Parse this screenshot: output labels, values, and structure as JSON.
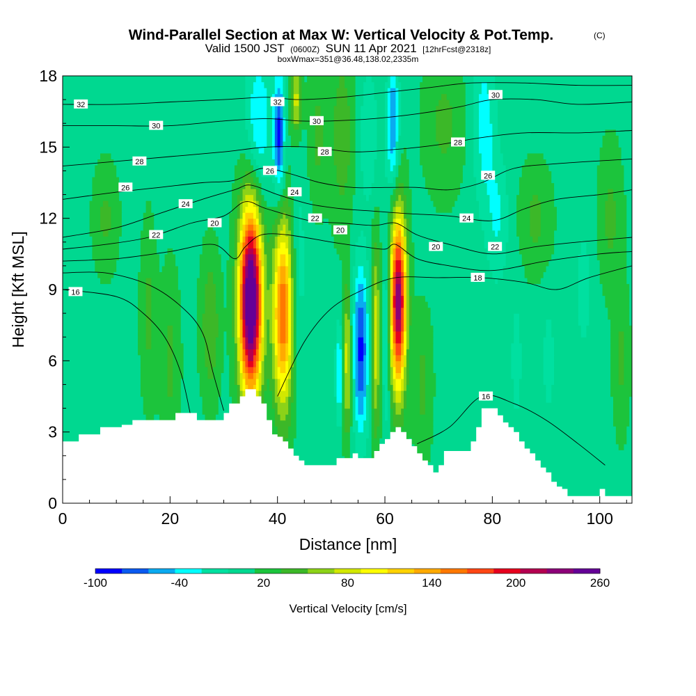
{
  "header": {
    "title": "Wind-Parallel Section at Max W: Vertical Velocity & Pot.Temp.",
    "title_mark": "(C)",
    "valid_prefix": "Valid 1500 JST",
    "valid_z": "(0600Z)",
    "valid_date": "SUN 11 Apr 2021",
    "forecast": "[12hrFcst@2318z]",
    "boxwmax": "boxWmax=351@36.48,138.02,2335m"
  },
  "colorbar": {
    "label": "Vertical Velocity [cm/s]",
    "tick_labels": [
      "-100",
      "-40",
      "20",
      "80",
      "140",
      "200",
      "260"
    ],
    "levels": [
      -100,
      -80,
      -60,
      -40,
      -20,
      0,
      20,
      40,
      60,
      80,
      100,
      120,
      140,
      160,
      180,
      200,
      220,
      240,
      260
    ],
    "colors": [
      "#0000ff",
      "#0a5af0",
      "#0aaaf0",
      "#00ffff",
      "#00e0a0",
      "#00d890",
      "#1cc43c",
      "#3cb828",
      "#8cd218",
      "#d2e800",
      "#ffff00",
      "#ffd200",
      "#ffaa00",
      "#ff7800",
      "#ff4614",
      "#e6001e",
      "#b40050",
      "#8c0078",
      "#640096"
    ]
  },
  "chart_data": {
    "type": "heatmap",
    "title": "Wind-Parallel Section at Max W: Vertical Velocity & Pot.Temp.",
    "xlabel": "Distance [nm]",
    "ylabel": "Height [Kft MSL]",
    "xlim": [
      0,
      106
    ],
    "ylim": [
      0,
      18
    ],
    "x_ticks": [
      0,
      20,
      40,
      60,
      80,
      100
    ],
    "y_ticks": [
      0,
      3,
      6,
      9,
      12,
      15,
      18
    ],
    "background_w": 15,
    "w_features": [
      {
        "x": 35.0,
        "z": 8.5,
        "sx": 1.5,
        "sz": 2.8,
        "w": 300
      },
      {
        "x": 41.0,
        "z": 8.0,
        "sx": 1.3,
        "sz": 2.8,
        "w": 165
      },
      {
        "x": 62.5,
        "z": 8.5,
        "sx": 1.05,
        "sz": 2.6,
        "w": 240
      },
      {
        "x": 58.3,
        "z": 7.0,
        "sx": 0.6,
        "sz": 2.8,
        "w": 80
      },
      {
        "x": 53.0,
        "z": 6.0,
        "sx": 0.55,
        "sz": 2.2,
        "w": 80
      },
      {
        "x": 55.5,
        "z": 6.5,
        "sx": 1.0,
        "sz": 2.5,
        "w": -100
      },
      {
        "x": 51.5,
        "z": 5.5,
        "sx": 0.5,
        "sz": 1.5,
        "w": -60
      },
      {
        "x": 60.2,
        "z": 7.5,
        "sx": 0.5,
        "sz": 3.0,
        "w": -45
      },
      {
        "x": 44.0,
        "z": 10.0,
        "sx": 1.0,
        "sz": 3.0,
        "w": -25
      },
      {
        "x": 40.3,
        "z": 15.5,
        "sx": 0.7,
        "sz": 1.8,
        "w": -100
      },
      {
        "x": 36.5,
        "z": 16.0,
        "sx": 1.8,
        "sz": 2.2,
        "w": -55
      },
      {
        "x": 61.5,
        "z": 16.0,
        "sx": 0.8,
        "sz": 2.0,
        "w": -75
      },
      {
        "x": 57.0,
        "z": 15.5,
        "sx": 1.2,
        "sz": 2.0,
        "w": -35
      },
      {
        "x": 43.5,
        "z": 17.0,
        "sx": 0.7,
        "sz": 1.0,
        "w": 75
      },
      {
        "x": 47.5,
        "z": 15.5,
        "sx": 1.2,
        "sz": 2.0,
        "w": 30
      },
      {
        "x": 52.0,
        "z": 15.5,
        "sx": 1.5,
        "sz": 2.5,
        "w": 40
      },
      {
        "x": 78.5,
        "z": 16.0,
        "sx": 1.5,
        "sz": 2.5,
        "w": -45
      },
      {
        "x": 81.0,
        "z": 12.0,
        "sx": 1.5,
        "sz": 2.0,
        "w": -35
      },
      {
        "x": 84.5,
        "z": 6.0,
        "sx": 0.8,
        "sz": 2.0,
        "w": -25
      },
      {
        "x": 71.0,
        "z": 16.0,
        "sx": 2.5,
        "sz": 2.0,
        "w": 30
      },
      {
        "x": 27.5,
        "z": 7.5,
        "sx": 1.2,
        "sz": 2.0,
        "w": 45
      },
      {
        "x": 8.0,
        "z": 12.0,
        "sx": 1.5,
        "sz": 1.5,
        "w": 30
      },
      {
        "x": 88.0,
        "z": 12.0,
        "sx": 2.0,
        "sz": 1.5,
        "w": 30
      },
      {
        "x": 102.0,
        "z": 12.0,
        "sx": 1.5,
        "sz": 2.0,
        "w": 30
      },
      {
        "x": 20.0,
        "z": 6.0,
        "sx": 1.2,
        "sz": 2.5,
        "w": 30
      },
      {
        "x": 16.0,
        "z": 8.0,
        "sx": 1.0,
        "sz": 2.5,
        "w": 30
      },
      {
        "x": 67.0,
        "z": 5.0,
        "sx": 1.2,
        "sz": 2.0,
        "w": 30
      },
      {
        "x": 90.5,
        "z": 6.0,
        "sx": 0.8,
        "sz": 1.5,
        "w": -30
      },
      {
        "x": 97.0,
        "z": 9.0,
        "sx": 1.2,
        "sz": 2.0,
        "w": -25
      },
      {
        "x": 104.0,
        "z": 6.0,
        "sx": 1.0,
        "sz": 2.0,
        "w": 30
      }
    ],
    "terrain": [
      [
        0,
        2.6
      ],
      [
        1,
        2.6
      ],
      [
        3,
        2.9
      ],
      [
        5,
        2.9
      ],
      [
        7,
        3.2
      ],
      [
        9,
        3.2
      ],
      [
        11,
        3.3
      ],
      [
        13,
        3.5
      ],
      [
        19,
        3.5
      ],
      [
        21,
        3.8
      ],
      [
        23,
        3.8
      ],
      [
        25,
        3.5
      ],
      [
        29,
        3.5
      ],
      [
        30,
        3.8
      ],
      [
        31,
        4.2
      ],
      [
        33,
        4.5
      ],
      [
        34,
        4.8
      ],
      [
        35,
        4.8
      ],
      [
        36,
        4.5
      ],
      [
        37,
        4.2
      ],
      [
        38,
        3.5
      ],
      [
        39,
        2.9
      ],
      [
        40,
        2.8
      ],
      [
        41,
        2.6
      ],
      [
        42,
        2.3
      ],
      [
        43,
        2.0
      ],
      [
        44,
        1.8
      ],
      [
        45,
        1.6
      ],
      [
        50,
        1.6
      ],
      [
        51,
        1.9
      ],
      [
        53,
        1.9
      ],
      [
        54,
        2.1
      ],
      [
        55,
        1.9
      ],
      [
        57,
        1.9
      ],
      [
        58,
        2.2
      ],
      [
        59,
        2.5
      ],
      [
        60,
        2.7
      ],
      [
        61,
        3.0
      ],
      [
        62,
        3.2
      ],
      [
        63,
        3.0
      ],
      [
        64,
        2.7
      ],
      [
        65,
        2.4
      ],
      [
        66,
        2.1
      ],
      [
        67,
        1.8
      ],
      [
        68,
        1.6
      ],
      [
        69,
        1.3
      ],
      [
        70,
        1.6
      ],
      [
        71,
        2.2
      ],
      [
        75,
        2.2
      ],
      [
        76,
        2.6
      ],
      [
        77,
        3.2
      ],
      [
        78,
        4.0
      ],
      [
        79,
        4.0
      ],
      [
        80,
        4.0
      ],
      [
        81,
        3.7
      ],
      [
        82,
        3.4
      ],
      [
        83,
        3.2
      ],
      [
        84,
        3.0
      ],
      [
        85,
        2.6
      ],
      [
        86,
        2.3
      ],
      [
        87,
        2.1
      ],
      [
        88,
        1.8
      ],
      [
        89,
        1.5
      ],
      [
        90,
        1.3
      ],
      [
        91,
        0.9
      ],
      [
        92,
        0.7
      ],
      [
        93,
        0.6
      ],
      [
        94,
        0.3
      ],
      [
        99,
        0.3
      ],
      [
        100,
        0.6
      ],
      [
        101,
        0.3
      ],
      [
        106,
        0.3
      ]
    ],
    "isentropes": [
      {
        "label": "16",
        "points": [
          [
            0,
            9
          ],
          [
            10,
            8.7
          ],
          [
            15,
            8
          ],
          [
            19,
            7
          ],
          [
            22,
            5.5
          ],
          [
            24,
            3.5
          ]
        ],
        "label_at": [
          2.4,
          8.9
        ]
      },
      {
        "label": "16",
        "points": [
          [
            66,
            2.5
          ],
          [
            72,
            3.2
          ],
          [
            78,
            4.5
          ],
          [
            84,
            4.2
          ],
          [
            90,
            3.5
          ],
          [
            96,
            2.5
          ],
          [
            101,
            1.6
          ]
        ],
        "label_at": [
          78.8,
          4.5
        ]
      },
      {
        "label": "18",
        "points": [
          [
            0,
            9.7
          ],
          [
            8,
            9.7
          ],
          [
            16,
            9.2
          ],
          [
            22,
            8.3
          ],
          [
            26,
            7.2
          ],
          [
            28,
            5.5
          ],
          [
            30,
            3.9
          ]
        ],
        "label_at": null
      },
      {
        "label": "18",
        "points": [
          [
            40,
            4.5
          ],
          [
            45,
            6.8
          ],
          [
            50,
            8.2
          ],
          [
            56,
            9.0
          ],
          [
            62,
            9.5
          ],
          [
            70,
            9.5
          ],
          [
            78,
            9.5
          ],
          [
            86,
            9.3
          ],
          [
            92,
            9.0
          ],
          [
            98,
            9.5
          ],
          [
            106,
            10.0
          ]
        ],
        "label_at": [
          77.3,
          9.5
        ]
      },
      {
        "label": "20",
        "points": [
          [
            0,
            10.2
          ],
          [
            10,
            10.3
          ],
          [
            20,
            10.6
          ],
          [
            28,
            10.9
          ],
          [
            32,
            10.3
          ],
          [
            34,
            10.8
          ],
          [
            37,
            11.3
          ],
          [
            42,
            11.3
          ],
          [
            50,
            11.0
          ],
          [
            56,
            10.8
          ],
          [
            60,
            10.7
          ],
          [
            62,
            10.9
          ],
          [
            66,
            10.3
          ],
          [
            72,
            10.0
          ],
          [
            80,
            9.8
          ],
          [
            90,
            10.2
          ],
          [
            100,
            10.5
          ],
          [
            106,
            10.6
          ]
        ],
        "label_at": [
          28.3,
          11.8
        ]
      },
      {
        "label": "20",
        "points": [],
        "label_at": [
          51.7,
          11.5
        ]
      },
      {
        "label": "20",
        "points": [],
        "label_at": [
          69.5,
          10.8
        ]
      },
      {
        "label": "22",
        "points": [
          [
            0,
            10.7
          ],
          [
            8,
            10.9
          ],
          [
            16,
            11.2
          ],
          [
            24,
            11.8
          ],
          [
            30,
            12.1
          ],
          [
            34,
            12.7
          ],
          [
            38,
            12.4
          ],
          [
            46,
            11.9
          ],
          [
            52,
            11.8
          ],
          [
            58,
            11.7
          ],
          [
            62,
            11.8
          ],
          [
            66,
            11.3
          ],
          [
            72,
            10.9
          ],
          [
            80,
            10.5
          ],
          [
            88,
            10.8
          ],
          [
            96,
            11.0
          ],
          [
            106,
            11.2
          ]
        ],
        "label_at": [
          17.4,
          11.3
        ]
      },
      {
        "label": "22",
        "points": [],
        "label_at": [
          47.0,
          12.0
        ]
      },
      {
        "label": "22",
        "points": [],
        "label_at": [
          80.5,
          10.8
        ]
      },
      {
        "label": "24",
        "points": [
          [
            0,
            11.2
          ],
          [
            10,
            11.6
          ],
          [
            18,
            12.2
          ],
          [
            26,
            12.8
          ],
          [
            32,
            13.2
          ],
          [
            35,
            13.4
          ],
          [
            40,
            13.0
          ],
          [
            46,
            12.6
          ],
          [
            52,
            12.4
          ],
          [
            58,
            12.3
          ],
          [
            64,
            12.2
          ],
          [
            72,
            12.1
          ],
          [
            80,
            11.9
          ],
          [
            86,
            12.4
          ],
          [
            92,
            12.8
          ],
          [
            100,
            13.0
          ],
          [
            106,
            13.2
          ]
        ],
        "label_at": [
          22.9,
          12.6
        ]
      },
      {
        "label": "24",
        "points": [],
        "label_at": [
          43.2,
          13.1
        ]
      },
      {
        "label": "24",
        "points": [],
        "label_at": [
          75.2,
          12.0
        ]
      },
      {
        "label": "26",
        "points": [
          [
            0,
            12.8
          ],
          [
            10,
            13.1
          ],
          [
            18,
            13.3
          ],
          [
            26,
            13.5
          ],
          [
            32,
            13.6
          ],
          [
            37,
            14.1
          ],
          [
            42,
            13.9
          ],
          [
            48,
            13.5
          ],
          [
            54,
            13.3
          ],
          [
            60,
            13.3
          ],
          [
            66,
            13.3
          ],
          [
            72,
            13.2
          ],
          [
            78,
            13.5
          ],
          [
            84,
            14.1
          ],
          [
            92,
            14.3
          ],
          [
            106,
            14.5
          ]
        ],
        "label_at": [
          11.7,
          13.3
        ]
      },
      {
        "label": "26",
        "points": [],
        "label_at": [
          38.6,
          14.0
        ]
      },
      {
        "label": "26",
        "points": [],
        "label_at": [
          79.2,
          13.8
        ]
      },
      {
        "label": "28",
        "points": [
          [
            0,
            14.2
          ],
          [
            10,
            14.4
          ],
          [
            20,
            14.6
          ],
          [
            30,
            14.8
          ],
          [
            38,
            15.0
          ],
          [
            46,
            15.0
          ],
          [
            54,
            14.8
          ],
          [
            62,
            14.9
          ],
          [
            70,
            15.1
          ],
          [
            78,
            15.4
          ],
          [
            86,
            15.6
          ],
          [
            96,
            15.6
          ],
          [
            106,
            15.7
          ]
        ],
        "label_at": [
          14.3,
          14.4
        ]
      },
      {
        "label": "28",
        "points": [],
        "label_at": [
          48.8,
          14.8
        ]
      },
      {
        "label": "28",
        "points": [],
        "label_at": [
          73.6,
          15.2
        ]
      },
      {
        "label": "30",
        "points": [
          [
            0,
            15.9
          ],
          [
            10,
            15.9
          ],
          [
            20,
            15.9
          ],
          [
            30,
            16.1
          ],
          [
            38,
            16.2
          ],
          [
            44,
            16.1
          ],
          [
            50,
            16.1
          ],
          [
            58,
            16.2
          ],
          [
            66,
            16.4
          ],
          [
            74,
            16.7
          ],
          [
            80,
            17.0
          ],
          [
            88,
            17.0
          ],
          [
            96,
            16.8
          ],
          [
            106,
            16.9
          ]
        ],
        "label_at": [
          17.4,
          15.9
        ]
      },
      {
        "label": "30",
        "points": [],
        "label_at": [
          47.3,
          16.1
        ]
      },
      {
        "label": "30",
        "points": [],
        "label_at": [
          80.6,
          17.2
        ]
      },
      {
        "label": "32",
        "points": [
          [
            0,
            16.8
          ],
          [
            10,
            16.8
          ],
          [
            20,
            16.9
          ],
          [
            30,
            17.0
          ],
          [
            38,
            17.1
          ],
          [
            44,
            17.0
          ],
          [
            52,
            17.1
          ],
          [
            60,
            17.3
          ],
          [
            68,
            17.5
          ],
          [
            76,
            17.7
          ],
          [
            86,
            17.7
          ],
          [
            96,
            17.6
          ],
          [
            106,
            17.6
          ]
        ],
        "label_at": [
          3.4,
          16.8
        ]
      },
      {
        "label": "32",
        "points": [],
        "label_at": [
          40.0,
          16.9
        ]
      }
    ]
  }
}
